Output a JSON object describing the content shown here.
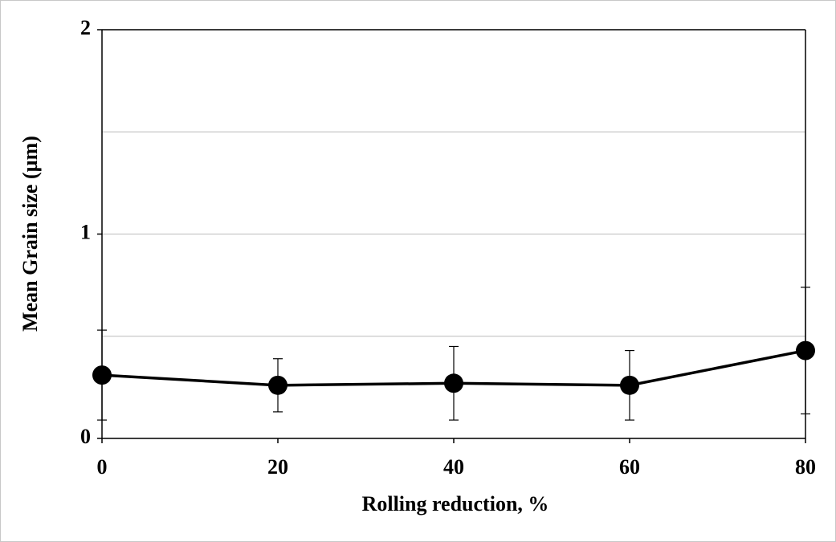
{
  "chart_data": {
    "type": "line",
    "x_label": "Rolling reduction, %",
    "y_label": "Mean Grain size (µm)",
    "x": [
      0,
      20,
      40,
      60,
      80
    ],
    "series": [
      {
        "name": "Mean grain size",
        "color": "#000000",
        "values": [
          0.31,
          0.26,
          0.27,
          0.26,
          0.43
        ],
        "errors": [
          0.22,
          0.13,
          0.18,
          0.17,
          0.31
        ]
      }
    ],
    "xlim": [
      0,
      80
    ],
    "xticks": [
      0,
      20,
      40,
      60,
      80
    ],
    "ylim": [
      0,
      2
    ],
    "yticks": [
      0,
      1,
      2
    ],
    "minor_yticks": [
      0.5,
      1.5
    ],
    "grid": true
  }
}
